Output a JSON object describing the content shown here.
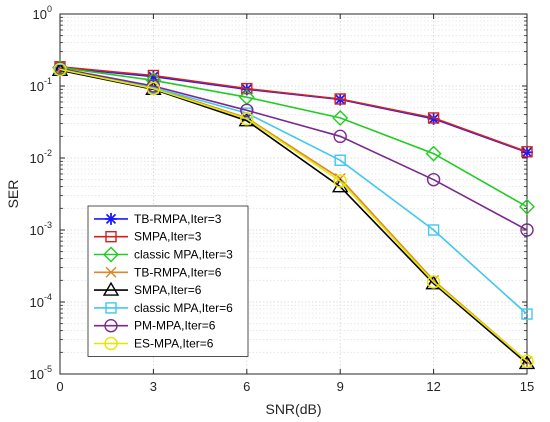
{
  "chart_data": {
    "type": "line",
    "xlabel": "SNR(dB)",
    "ylabel": "SER",
    "yscale": "log",
    "xlim": [
      0,
      15
    ],
    "ylim": [
      1e-05,
      1
    ],
    "grid": true,
    "legend_position": "lower-left",
    "x": [
      0,
      3,
      6,
      9,
      12,
      15
    ],
    "x_ticks": [
      "0",
      "3",
      "6",
      "9",
      "12",
      "15"
    ],
    "y_ticks": [
      {
        "base": "10",
        "exp": "0"
      },
      {
        "base": "10",
        "exp": "-1"
      },
      {
        "base": "10",
        "exp": "-2"
      },
      {
        "base": "10",
        "exp": "-3"
      },
      {
        "base": "10",
        "exp": "-4"
      },
      {
        "base": "10",
        "exp": "-5"
      }
    ],
    "series": [
      {
        "name": "TB-RMPA,Iter=3",
        "color": "#1a1aff",
        "marker": "asterisk",
        "values": [
          0.18,
          0.135,
          0.09,
          0.065,
          0.035,
          0.012
        ]
      },
      {
        "name": "SMPA,Iter=3",
        "color": "#d42020",
        "marker": "square",
        "values": [
          0.185,
          0.14,
          0.092,
          0.066,
          0.036,
          0.0122
        ]
      },
      {
        "name": "classic MPA,Iter=3",
        "color": "#22cc22",
        "marker": "diamond",
        "values": [
          0.18,
          0.12,
          0.07,
          0.036,
          0.0115,
          0.0021
        ]
      },
      {
        "name": "TB-RMPA,Iter=6",
        "color": "#d98a2a",
        "marker": "x",
        "values": [
          0.17,
          0.095,
          0.036,
          0.0052,
          0.0002,
          1.5e-05
        ]
      },
      {
        "name": "SMPA,Iter=6",
        "color": "#000000",
        "marker": "triangle",
        "values": [
          0.165,
          0.09,
          0.033,
          0.004,
          0.00018,
          1.4e-05
        ]
      },
      {
        "name": "classic MPA,Iter=6",
        "color": "#40c8ee",
        "marker": "square",
        "values": [
          0.17,
          0.095,
          0.042,
          0.0093,
          0.001,
          6.8e-05
        ]
      },
      {
        "name": "PM-MPA,Iter=6",
        "color": "#7a2a8e",
        "marker": "circle",
        "values": [
          0.175,
          0.1,
          0.046,
          0.02,
          0.005,
          0.001
        ]
      },
      {
        "name": "ES-MPA,Iter=6",
        "color": "#e6e600",
        "marker": "circle",
        "values": [
          0.17,
          0.092,
          0.035,
          0.0048,
          0.00019,
          1.5e-05
        ]
      }
    ]
  }
}
